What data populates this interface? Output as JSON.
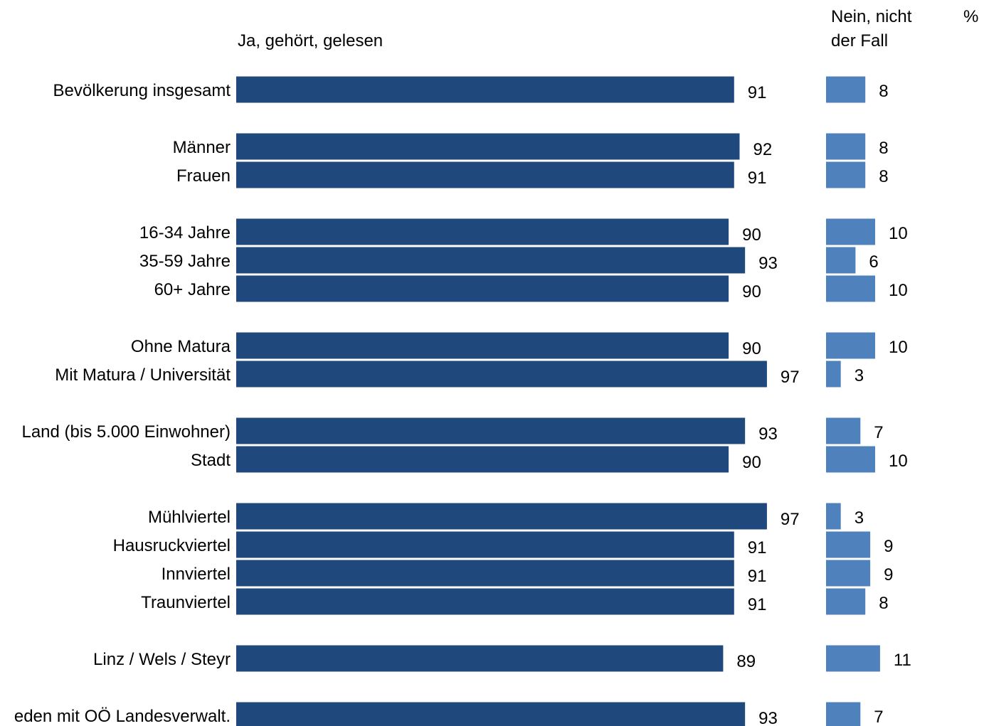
{
  "chart_data": {
    "type": "bar",
    "orientation": "horizontal",
    "unit_label": "%",
    "categories": [
      "Bevölkerung insgesamt",
      "Männer",
      "Frauen",
      "16-34 Jahre",
      "35-59 Jahre",
      "60+ Jahre",
      "Ohne Matura",
      "Mit Matura / Universität",
      "Land (bis 5.000 Einwohner)",
      "Stadt",
      "Mühlviertel",
      "Hausruckviertel",
      "Innviertel",
      "Traunviertel",
      "Linz / Wels / Steyr",
      "eden mit OÖ Landesverwalt."
    ],
    "groups": [
      [
        0
      ],
      [
        1,
        2
      ],
      [
        3,
        4,
        5
      ],
      [
        6,
        7
      ],
      [
        8,
        9
      ],
      [
        10,
        11,
        12,
        13
      ],
      [
        14
      ],
      [
        15
      ]
    ],
    "series": [
      {
        "name": "Ja, gehört, gelesen",
        "color": "#1F497D",
        "values": [
          91,
          92,
          91,
          90,
          93,
          90,
          90,
          97,
          93,
          90,
          97,
          91,
          91,
          91,
          89,
          93
        ]
      },
      {
        "name": "Nein, nicht der Fall",
        "name_lines": [
          "Nein, nicht",
          "der Fall"
        ],
        "color": "#4F81BD",
        "values": [
          8,
          8,
          8,
          10,
          6,
          10,
          10,
          3,
          7,
          10,
          3,
          9,
          9,
          8,
          11,
          7
        ]
      }
    ],
    "xlim": [
      0,
      100
    ],
    "grid": false,
    "legend": "top"
  }
}
